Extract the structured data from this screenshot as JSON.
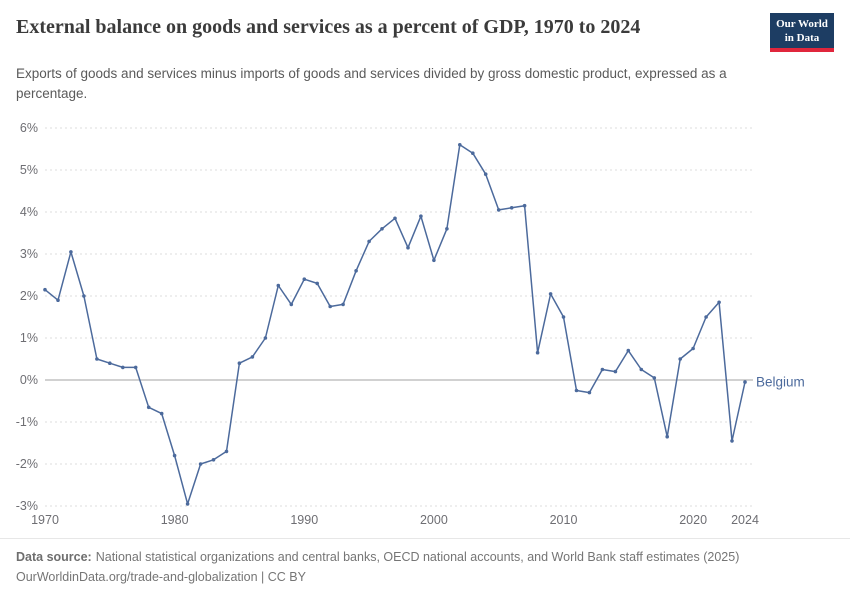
{
  "header": {
    "title": "External balance on goods and services as a percent of GDP, 1970 to 2024",
    "subtitle": "Exports of goods and services minus imports of goods and services divided by gross domestic product, expressed as a percentage.",
    "logo": {
      "line1": "Our World",
      "line2": "in Data",
      "bg": "#1d3d63",
      "accent": "#e0263c"
    }
  },
  "chart_data": {
    "type": "line",
    "title": "External balance on goods and services as a percent of GDP, 1970 to 2024",
    "xlabel": "",
    "ylabel": "",
    "grid": "horizontal-dashed",
    "zero_line": true,
    "legend_position": "end-of-line-label",
    "xlim": [
      1970,
      2024
    ],
    "ylim": [
      -3,
      6
    ],
    "x_ticks": [
      1970,
      1980,
      1990,
      2000,
      2010,
      2020,
      2024
    ],
    "y_ticks": [
      -3,
      -2,
      -1,
      0,
      1,
      2,
      3,
      4,
      5,
      6
    ],
    "y_tick_suffix": "%",
    "x": [
      1970,
      1971,
      1972,
      1973,
      1974,
      1975,
      1976,
      1977,
      1978,
      1979,
      1980,
      1981,
      1982,
      1983,
      1984,
      1985,
      1986,
      1987,
      1988,
      1989,
      1990,
      1991,
      1992,
      1993,
      1994,
      1995,
      1996,
      1997,
      1998,
      1999,
      2000,
      2001,
      2002,
      2003,
      2004,
      2005,
      2006,
      2007,
      2008,
      2009,
      2010,
      2011,
      2012,
      2013,
      2014,
      2015,
      2016,
      2017,
      2018,
      2019,
      2020,
      2021,
      2022,
      2023,
      2024
    ],
    "series": [
      {
        "name": "Belgium",
        "color": "#4c6a9c",
        "values": [
          2.15,
          1.9,
          3.05,
          2.0,
          0.5,
          0.4,
          0.3,
          0.3,
          -0.65,
          -0.8,
          -1.8,
          -2.95,
          -2.0,
          -1.9,
          -1.7,
          0.4,
          0.55,
          1.0,
          2.25,
          1.8,
          2.4,
          2.3,
          1.75,
          1.8,
          2.6,
          3.3,
          3.6,
          3.85,
          3.15,
          3.9,
          2.85,
          3.6,
          5.6,
          5.4,
          4.9,
          4.05,
          4.1,
          4.15,
          0.65,
          2.05,
          1.5,
          -0.25,
          -0.3,
          0.25,
          0.2,
          0.7,
          0.25,
          0.05,
          -1.35,
          0.5,
          0.75,
          1.5,
          1.85,
          -1.45,
          -0.05
        ]
      }
    ],
    "entity_label": "Belgium"
  },
  "footer": {
    "source_prefix": "Data source:",
    "source_body": "National statistical organizations and central banks, OECD national accounts, and World Bank staff estimates (2025)",
    "link": "OurWorldinData.org/trade-and-globalization",
    "license": " | CC BY"
  }
}
